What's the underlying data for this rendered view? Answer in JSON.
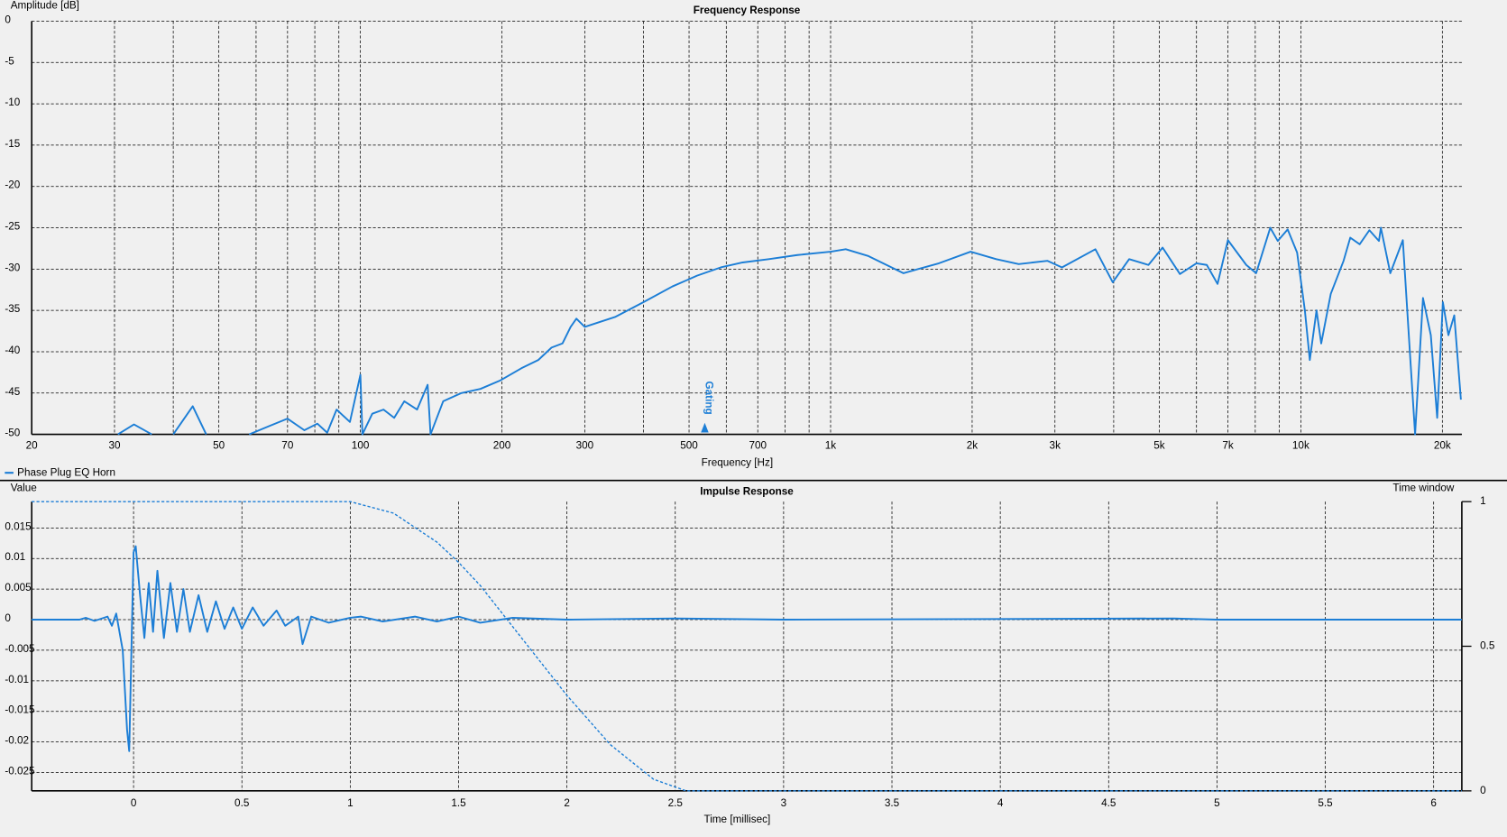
{
  "chart_data": [
    {
      "type": "line",
      "title": "Frequency Response",
      "xlabel": "Frequency [Hz]",
      "ylabel": "Amplitude [dB]",
      "xscale": "log",
      "xlim": [
        20,
        22000
      ],
      "ylim": [
        -50,
        0
      ],
      "xticks": [
        20,
        30,
        50,
        70,
        100,
        200,
        300,
        500,
        700,
        {
          "value": 1000,
          "label": "1k"
        },
        {
          "value": 2000,
          "label": "2k"
        },
        {
          "value": 3000,
          "label": "3k"
        },
        {
          "value": 5000,
          "label": "5k"
        },
        {
          "value": 7000,
          "label": "7k"
        },
        {
          "value": 10000,
          "label": "10k"
        },
        {
          "value": 20000,
          "label": "20k"
        }
      ],
      "minor_xticks": [
        40,
        60,
        80,
        90,
        400,
        600,
        800,
        900,
        4000,
        6000,
        8000,
        9000
      ],
      "yticks": [
        0,
        -5,
        -10,
        -15,
        -20,
        -25,
        -30,
        -35,
        -40,
        -45,
        -50
      ],
      "grid": true,
      "legend": "bottom-left",
      "series": [
        {
          "name": "Phase Plug EQ Horn",
          "color": "#1c7ed6",
          "x": [
            30.5,
            33,
            36,
            38,
            40,
            44,
            47,
            50,
            58,
            64,
            70,
            76,
            81,
            85,
            89,
            95,
            100,
            101,
            106,
            112,
            118,
            124,
            132,
            139,
            141,
            150,
            164,
            180,
            198,
            220,
            239,
            255,
            269,
            280,
            288,
            300,
            348,
            400,
            461,
            520,
            584,
            650,
            739,
            850,
            1000,
            1077,
            1200,
            1428,
            1700,
            1985,
            2250,
            2512,
            2890,
            3105,
            3657,
            3981,
            4315,
            4742,
            5082,
            5532,
            5998,
            6310,
            6652,
            6998,
            7656,
            8035,
            8611,
            8933,
            9376,
            9820,
            10200,
            10450,
            10800,
            11050,
            11580,
            12330,
            12740,
            13340,
            13990,
            14660,
            14800,
            15500,
            16480,
            17100,
            17500,
            18190,
            18900,
            19500,
            20050,
            20600,
            21200,
            21900
          ],
          "values": [
            -50,
            -48.8,
            -50,
            null,
            -50,
            -46.6,
            -50,
            null,
            -50,
            -49,
            -48.1,
            -49.5,
            -48.7,
            -49.8,
            -47,
            -48.5,
            -42.8,
            -50,
            -47.5,
            -47,
            -48,
            -46,
            -47,
            -44,
            -50,
            -46,
            -45,
            -44.5,
            -43.5,
            -42,
            -41,
            -39.5,
            -39,
            -37,
            -36,
            -37,
            -35.8,
            -34,
            -32.1,
            -30.8,
            -29.8,
            -29.2,
            -28.8,
            -28.3,
            -27.9,
            -27.6,
            -28.4,
            -30.5,
            -29.3,
            -27.9,
            -28.8,
            -29.4,
            -29,
            -29.8,
            -27.6,
            -31.6,
            -28.8,
            -29.5,
            -27.4,
            -30.6,
            -29.3,
            -29.5,
            -31.8,
            -26.5,
            -29.5,
            -30.5,
            -25,
            -26.6,
            -25.2,
            -28,
            -35,
            -41,
            -35,
            -39,
            -33,
            -29,
            -26.2,
            -27,
            -25.3,
            -26.6,
            -25,
            -30.5,
            -26.5,
            -41,
            -50,
            -33.5,
            -38,
            -48,
            -34,
            -38,
            -35.6,
            -45.8
          ]
        }
      ],
      "annotations": [
        {
          "text": "Gating",
          "x": 540
        }
      ]
    },
    {
      "type": "line",
      "title": "Impulse Response",
      "xlabel": "Time [millisec]",
      "ylabel": "Value",
      "y2label": "Time window",
      "xlim": [
        -0.47,
        6.13
      ],
      "ylim": [
        -0.028,
        0.0193
      ],
      "y2lim": [
        0,
        1
      ],
      "xticks": [
        0,
        0.5,
        1,
        1.5,
        2,
        2.5,
        3,
        3.5,
        4,
        4.5,
        5,
        5.5,
        6
      ],
      "yticks": [
        0.015,
        0.01,
        0.005,
        0,
        -0.005,
        -0.01,
        -0.015,
        -0.02,
        -0.025
      ],
      "y2ticks": [
        0,
        0.5,
        1
      ],
      "grid": true,
      "series": [
        {
          "color": "#1c7ed6",
          "x": [
            -0.47,
            -0.25,
            -0.22,
            -0.18,
            -0.12,
            -0.1,
            -0.08,
            -0.05,
            -0.03,
            -0.02,
            0,
            0.01,
            0.03,
            0.05,
            0.07,
            0.09,
            0.11,
            0.14,
            0.17,
            0.2,
            0.23,
            0.26,
            0.3,
            0.34,
            0.38,
            0.42,
            0.46,
            0.5,
            0.55,
            0.6,
            0.66,
            0.7,
            0.76,
            0.78,
            0.82,
            0.9,
            1.0,
            1.05,
            1.15,
            1.3,
            1.4,
            1.5,
            1.6,
            1.75,
            2,
            2.5,
            3,
            4,
            4.8,
            5,
            6.13
          ],
          "values": [
            0,
            0,
            0.0003,
            -0.0002,
            0.0005,
            -0.001,
            0.001,
            -0.005,
            -0.018,
            -0.0215,
            0.011,
            0.012,
            0.004,
            -0.003,
            0.006,
            -0.002,
            0.008,
            -0.003,
            0.006,
            -0.002,
            0.005,
            -0.002,
            0.004,
            -0.002,
            0.003,
            -0.0015,
            0.002,
            -0.0015,
            0.002,
            -0.001,
            0.0015,
            -0.001,
            0.0005,
            -0.004,
            0.0005,
            -0.0005,
            0.0003,
            0.0005,
            -0.0003,
            0.0005,
            -0.0003,
            0.0005,
            -0.0005,
            0.0003,
            0,
            0.0002,
            0,
            0.0001,
            0.0002,
            0,
            0
          ]
        },
        {
          "color": "#1c7ed6",
          "axis": "y2",
          "line_style": "dashed",
          "x": [
            -0.47,
            1.0,
            1.2,
            1.4,
            1.5,
            1.6,
            1.8,
            2.0,
            2.2,
            2.4,
            2.55,
            6.13
          ],
          "values": [
            1,
            1,
            0.96,
            0.86,
            0.79,
            0.71,
            0.52,
            0.33,
            0.16,
            0.04,
            0,
            0
          ]
        }
      ]
    }
  ]
}
